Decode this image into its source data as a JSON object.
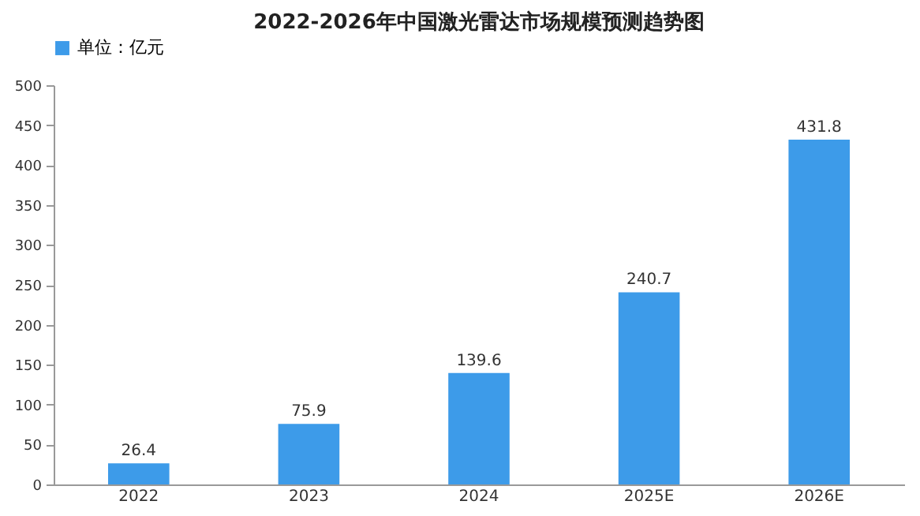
{
  "chart_data": {
    "type": "bar",
    "title": "2022-2026年中国激光雷达市场规模预测趋势图",
    "categories": [
      "2022",
      "2023",
      "2024",
      "2025E",
      "2026E"
    ],
    "series": [
      {
        "name": "单位：亿元",
        "color": "#3d9be9",
        "values": [
          26.4,
          75.9,
          139.6,
          240.7,
          431.8
        ]
      }
    ],
    "ylim": [
      0,
      500
    ],
    "yticks": [
      0,
      50,
      100,
      150,
      200,
      250,
      300,
      350,
      400,
      450,
      500
    ],
    "data_labels": true,
    "legend": "top"
  }
}
